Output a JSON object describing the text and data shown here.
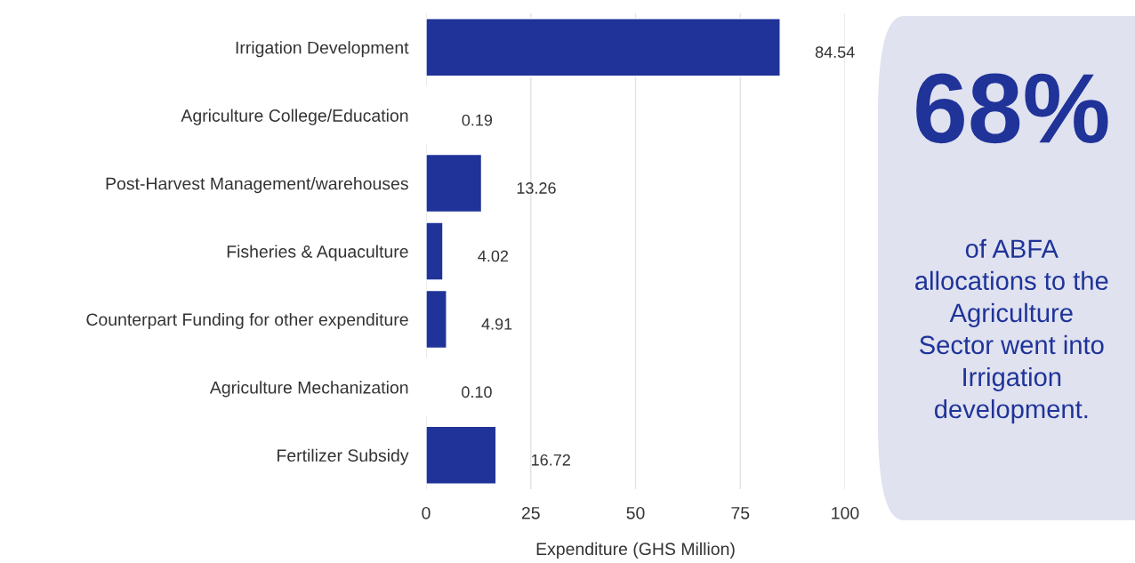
{
  "chart_data": [
    {
      "type": "bar",
      "orientation": "horizontal",
      "xlabel": "Expenditure (GHS Million)",
      "categories": [
        "Irrigation Development",
        "Agriculture College/Education",
        "Post-Harvest Management/warehouses",
        "Fisheries & Aquaculture",
        "Counterpart Funding for other expenditure",
        "Agriculture Mechanization",
        "Fertilizer Subsidy"
      ],
      "values": [
        84.54,
        0.19,
        13.26,
        4.02,
        4.91,
        0.1,
        16.72
      ],
      "value_labels": [
        "84.54",
        "0.19",
        "13.26",
        "4.02",
        "4.91",
        "0.10",
        "16.72"
      ],
      "color": "#1f3399",
      "xlim": [
        0,
        100
      ],
      "xticks": [
        0,
        25,
        50,
        75,
        100
      ],
      "grid": "x"
    },
    {
      "type": "other",
      "title": "68%",
      "subtitle": "of ABFA\nallocations to the\nAgriculture\nSector went into\nIrrigation\ndevelopment."
    }
  ]
}
